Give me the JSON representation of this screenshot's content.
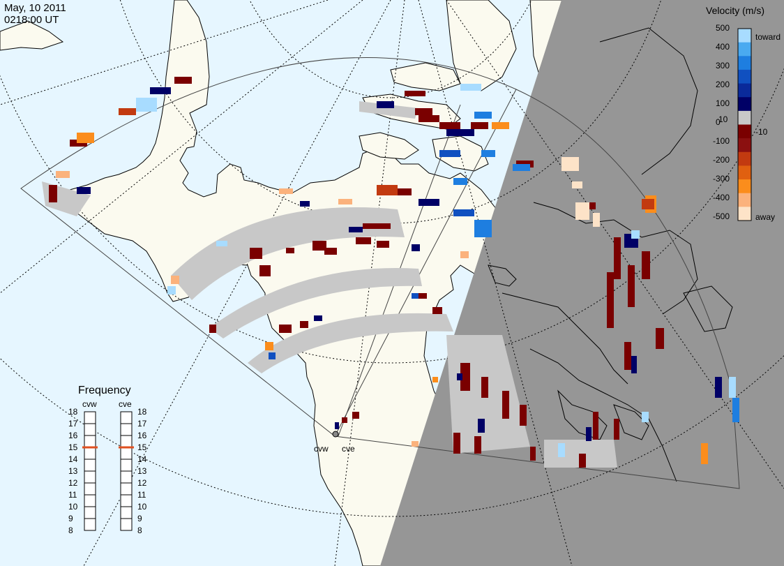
{
  "header": {
    "date": "May, 10 2011",
    "time": "0218:00 UT"
  },
  "colorbar": {
    "title": "Velocity (m/s)",
    "labels": [
      "500",
      "400",
      "300",
      "200",
      "100",
      "10",
      "0",
      "-10",
      "-100",
      "-200",
      "-300",
      "-400",
      "-500"
    ],
    "toward_label": "toward",
    "away_label": "away",
    "colors": [
      "#fde3c8",
      "#fbb27c",
      "#fb8d1c",
      "#e06010",
      "#c23a10",
      "#8b1010",
      "#7a0000",
      "#c8c8c8",
      "#000066",
      "#0a2a9a",
      "#1050c0",
      "#1e7ee0",
      "#4aaaf0",
      "#a8dcff"
    ]
  },
  "frequency": {
    "title": "Frequency",
    "left_radar": "cvw",
    "right_radar": "cve",
    "scale": [
      "18",
      "17",
      "16",
      "15",
      "14",
      "13",
      "12",
      "11",
      "10",
      "9",
      "8"
    ],
    "left_value": 15,
    "right_value": 15,
    "marker_color": "#e05020"
  },
  "radar_sites": [
    "cvw",
    "cve"
  ],
  "map_colors": {
    "ocean": "#e6f6ff",
    "land": "#fbfaef",
    "night": "#969696",
    "ground_scatter": "#c8c8c8"
  }
}
